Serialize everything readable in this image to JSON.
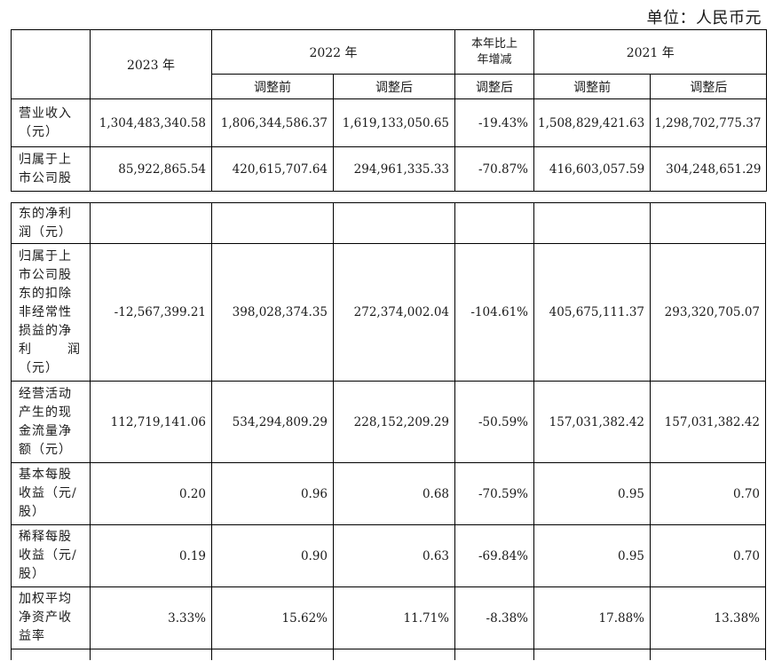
{
  "unit_label": "单位：人民币元",
  "header": {
    "y2023": "2023 年",
    "y2022": "2022 年",
    "yoy": "本年比上年增减",
    "yoy_line1": "本年比上",
    "yoy_line2": "年增减",
    "y2021": "2021 年",
    "before": "调整前",
    "after": "调整后",
    "after_yoy": "调整后"
  },
  "rows_table1": [
    {
      "label_lines": [
        "营业收入",
        "（元）"
      ],
      "values": [
        "1,304,483,340.58",
        "1,806,344,586.37",
        "1,619,133,050.65",
        "-19.43%",
        "1,508,829,421.63",
        "1,298,702,775.37"
      ]
    },
    {
      "label_lines": [
        "归属于上",
        "市公司股"
      ],
      "values": [
        "85,922,865.54",
        "420,615,707.64",
        "294,961,335.33",
        "-70.87%",
        "416,603,057.59",
        "304,248,651.29"
      ]
    }
  ],
  "rows_table2": [
    {
      "label_lines": [
        "东的净利",
        "润（元）"
      ],
      "values": [
        "",
        "",
        "",
        "",
        "",
        ""
      ]
    },
    {
      "label_lines": [
        "归属于上",
        "市公司股",
        "东的扣除",
        "非经常性",
        "损益的净",
        "利润_SPREAD",
        "（元）"
      ],
      "values": [
        "-12,567,399.21",
        "398,028,374.35",
        "272,374,002.04",
        "-104.61%",
        "405,675,111.37",
        "293,320,705.07"
      ]
    },
    {
      "label_lines": [
        "经营活动",
        "产生的现",
        "金流量净",
        "额（元）"
      ],
      "values": [
        "112,719,141.06",
        "534,294,809.29",
        "228,152,209.29",
        "-50.59%",
        "157,031,382.42",
        "157,031,382.42"
      ]
    },
    {
      "label_lines": [
        "基本每股",
        "收益（元/",
        "股）"
      ],
      "values": [
        "0.20",
        "0.96",
        "0.68",
        "-70.59%",
        "0.95",
        "0.70"
      ]
    },
    {
      "label_lines": [
        "稀释每股",
        "收益（元/",
        "股）"
      ],
      "values": [
        "0.19",
        "0.90",
        "0.63",
        "-69.84%",
        "0.95",
        "0.70"
      ]
    },
    {
      "label_lines": [
        "加权平均",
        "净资产收",
        "益率"
      ],
      "values": [
        "3.33%",
        "15.62%",
        "11.71%",
        "-8.38%",
        "17.88%",
        "13.38%"
      ]
    }
  ],
  "spread_label": {
    "a": "利",
    "b": "润"
  }
}
